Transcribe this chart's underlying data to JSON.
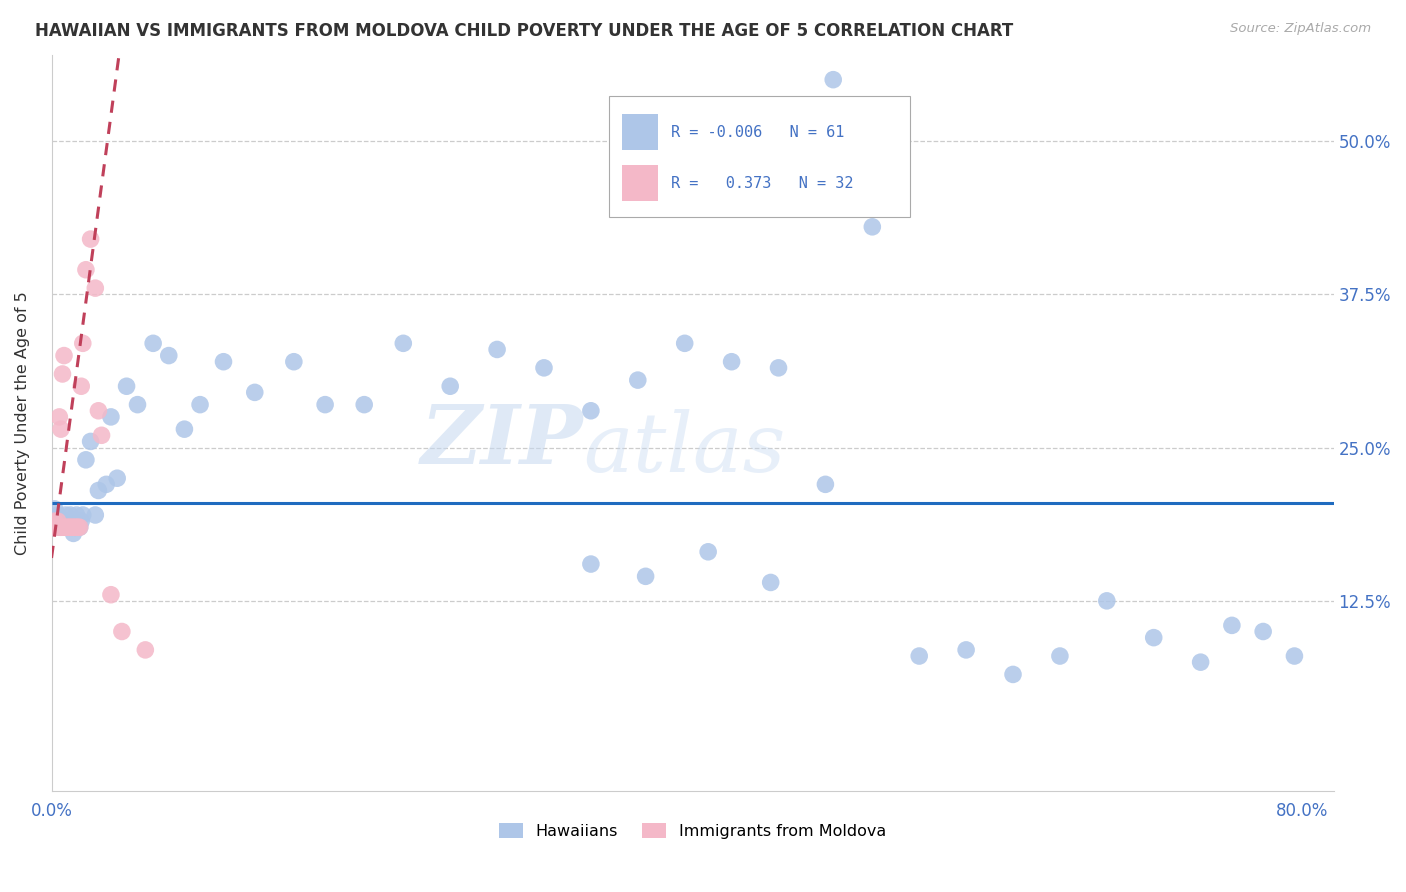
{
  "title": "HAWAIIAN VS IMMIGRANTS FROM MOLDOVA CHILD POVERTY UNDER THE AGE OF 5 CORRELATION CHART",
  "source": "Source: ZipAtlas.com",
  "ylabel": "Child Poverty Under the Age of 5",
  "ytick_labels": [
    "50.0%",
    "37.5%",
    "25.0%",
    "12.5%"
  ],
  "ytick_values": [
    0.5,
    0.375,
    0.25,
    0.125
  ],
  "xlim": [
    0.0,
    0.82
  ],
  "ylim": [
    -0.03,
    0.57
  ],
  "legend_blue_r": "-0.006",
  "legend_blue_n": "61",
  "legend_pink_r": "0.373",
  "legend_pink_n": "32",
  "hawaiians_color": "#aec6e8",
  "moldova_color": "#f4b8c8",
  "trendline_blue_color": "#1f6bbf",
  "trendline_pink_color": "#c0405a",
  "watermark_zip": "ZIP",
  "watermark_atlas": "atlas",
  "blue_x": [
    0.002,
    0.004,
    0.006,
    0.008,
    0.009,
    0.01,
    0.011,
    0.012,
    0.013,
    0.014,
    0.015,
    0.016,
    0.017,
    0.018,
    0.019,
    0.02,
    0.022,
    0.025,
    0.028,
    0.03,
    0.035,
    0.038,
    0.042,
    0.048,
    0.055,
    0.065,
    0.075,
    0.085,
    0.095,
    0.11,
    0.13,
    0.155,
    0.175,
    0.2,
    0.225,
    0.255,
    0.285,
    0.315,
    0.345,
    0.375,
    0.405,
    0.435,
    0.465,
    0.495,
    0.525,
    0.555,
    0.585,
    0.615,
    0.645,
    0.675,
    0.705,
    0.735,
    0.755,
    0.775,
    0.795,
    0.345,
    0.38,
    0.42,
    0.46,
    0.5,
    0.54
  ],
  "blue_y": [
    0.2,
    0.195,
    0.185,
    0.19,
    0.195,
    0.185,
    0.19,
    0.195,
    0.185,
    0.18,
    0.185,
    0.195,
    0.19,
    0.185,
    0.19,
    0.195,
    0.24,
    0.255,
    0.195,
    0.215,
    0.22,
    0.275,
    0.225,
    0.3,
    0.285,
    0.335,
    0.325,
    0.265,
    0.285,
    0.32,
    0.295,
    0.32,
    0.285,
    0.285,
    0.335,
    0.3,
    0.33,
    0.315,
    0.28,
    0.305,
    0.335,
    0.32,
    0.315,
    0.22,
    0.43,
    0.08,
    0.085,
    0.065,
    0.08,
    0.125,
    0.095,
    0.075,
    0.105,
    0.1,
    0.08,
    0.155,
    0.145,
    0.165,
    0.14,
    0.55,
    0.46
  ],
  "pink_x": [
    0.001,
    0.002,
    0.003,
    0.004,
    0.005,
    0.006,
    0.007,
    0.008,
    0.009,
    0.01,
    0.011,
    0.012,
    0.013,
    0.014,
    0.015,
    0.016,
    0.017,
    0.018,
    0.005,
    0.006,
    0.007,
    0.008,
    0.019,
    0.02,
    0.022,
    0.025,
    0.028,
    0.03,
    0.032,
    0.038,
    0.045,
    0.06
  ],
  "pink_y": [
    0.185,
    0.19,
    0.185,
    0.19,
    0.185,
    0.185,
    0.185,
    0.185,
    0.185,
    0.185,
    0.185,
    0.185,
    0.185,
    0.185,
    0.185,
    0.185,
    0.185,
    0.185,
    0.275,
    0.265,
    0.31,
    0.325,
    0.3,
    0.335,
    0.395,
    0.42,
    0.38,
    0.28,
    0.26,
    0.13,
    0.1,
    0.085
  ],
  "blue_trendline_y_level": 0.205,
  "pink_trendline_slope": 9.5,
  "pink_trendline_intercept": 0.16
}
